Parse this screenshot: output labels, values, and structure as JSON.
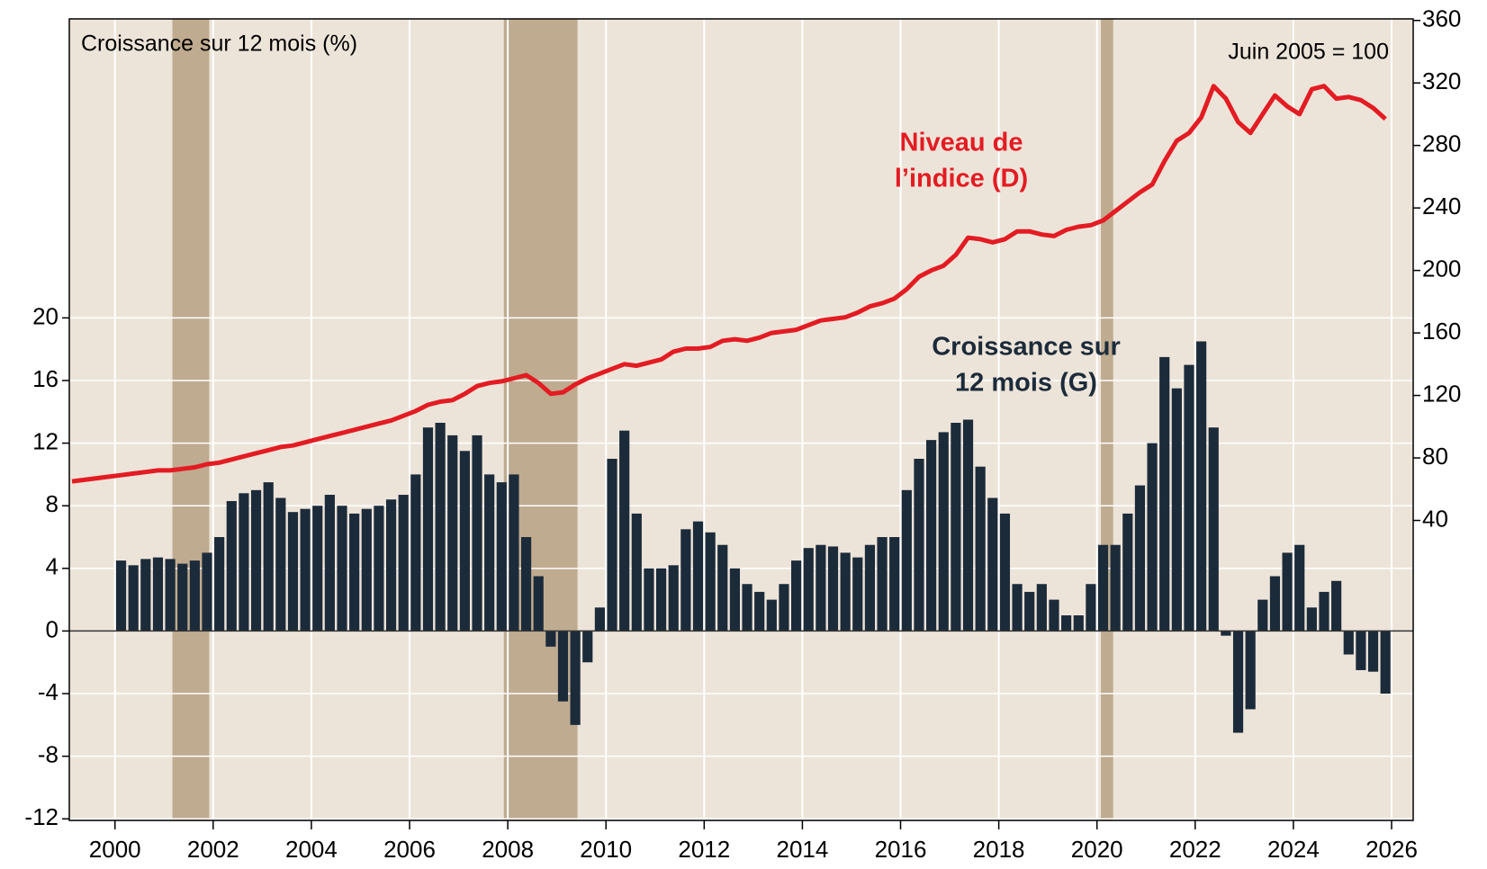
{
  "chart_data": {
    "type": "bar-line",
    "y_axis_label": "Croissance sur 12 mois (%)",
    "y2_axis_label": "Juin 2005 = 100",
    "annotations": [
      {
        "lines": [
          "Niveau de",
          "l’indice (D)"
        ],
        "color": "#e31c23"
      },
      {
        "lines": [
          "Croissance sur",
          "12 mois (G)"
        ],
        "color": "#1c2b3a"
      }
    ],
    "shaded": [
      [
        2001.17,
        2001.92
      ],
      [
        2007.92,
        2009.42
      ],
      [
        2020.08,
        2020.33
      ]
    ],
    "shade_color": "#bfab8f",
    "background": "#ede4d9",
    "xlim": [
      1999.07,
      2026.44
    ],
    "xticks": [
      2000,
      2002,
      2004,
      2006,
      2008,
      2010,
      2012,
      2014,
      2016,
      2018,
      2020,
      2022,
      2024,
      2026
    ],
    "ylim": [
      -12.1,
      39.1
    ],
    "yticks": [
      -12,
      -8,
      -4,
      0,
      4,
      8,
      12,
      16,
      20
    ],
    "y2lim": [
      -152,
      361
    ],
    "y2ticks": [
      40,
      80,
      120,
      160,
      200,
      240,
      280,
      320,
      360
    ],
    "grid": true,
    "series": [
      {
        "type": "bar",
        "color": "#1c2b3a",
        "x": [
          2000.125,
          2000.375,
          2000.625,
          2000.875,
          2001.125,
          2001.375,
          2001.625,
          2001.875,
          2002.125,
          2002.375,
          2002.625,
          2002.875,
          2003.125,
          2003.375,
          2003.625,
          2003.875,
          2004.125,
          2004.375,
          2004.625,
          2004.875,
          2005.125,
          2005.375,
          2005.625,
          2005.875,
          2006.125,
          2006.375,
          2006.625,
          2006.875,
          2007.125,
          2007.375,
          2007.625,
          2007.875,
          2008.125,
          2008.375,
          2008.625,
          2008.875,
          2009.125,
          2009.375,
          2009.625,
          2009.875,
          2010.125,
          2010.375,
          2010.625,
          2010.875,
          2011.125,
          2011.375,
          2011.625,
          2011.875,
          2012.125,
          2012.375,
          2012.625,
          2012.875,
          2013.125,
          2013.375,
          2013.625,
          2013.875,
          2014.125,
          2014.375,
          2014.625,
          2014.875,
          2015.125,
          2015.375,
          2015.625,
          2015.875,
          2016.125,
          2016.375,
          2016.625,
          2016.875,
          2017.125,
          2017.375,
          2017.625,
          2017.875,
          2018.125,
          2018.375,
          2018.625,
          2018.875,
          2019.125,
          2019.375,
          2019.625,
          2019.875,
          2020.125,
          2020.375,
          2020.625,
          2020.875,
          2021.125,
          2021.375,
          2021.625,
          2021.875,
          2022.125,
          2022.375,
          2022.625,
          2022.875,
          2023.125,
          2023.375,
          2023.625,
          2023.875,
          2024.125,
          2024.375,
          2024.625,
          2024.875,
          2025.125,
          2025.375,
          2025.625,
          2025.875
        ],
        "values": [
          4.5,
          4.2,
          4.6,
          4.7,
          4.6,
          4.3,
          4.5,
          5.0,
          6.0,
          8.3,
          8.8,
          9.0,
          9.5,
          8.5,
          7.6,
          7.8,
          8.0,
          8.7,
          8.0,
          7.5,
          7.8,
          8.0,
          8.4,
          8.7,
          10.0,
          13.0,
          13.3,
          12.5,
          11.5,
          12.5,
          10.0,
          9.5,
          10.0,
          6.0,
          3.5,
          -1.0,
          -4.5,
          -6.0,
          -2.0,
          1.5,
          11.0,
          12.8,
          7.5,
          4.0,
          4.0,
          4.2,
          6.5,
          7.0,
          6.3,
          5.5,
          4.0,
          3.0,
          2.5,
          2.0,
          3.0,
          4.5,
          5.3,
          5.5,
          5.4,
          5.0,
          4.7,
          5.5,
          6.0,
          6.0,
          9.0,
          11.0,
          12.2,
          12.7,
          13.3,
          13.5,
          10.5,
          8.5,
          7.5,
          3.0,
          2.5,
          3.0,
          2.0,
          1.0,
          1.0,
          3.0,
          5.5,
          5.5,
          7.5,
          9.3,
          12.0,
          17.5,
          15.5,
          17.0,
          18.5,
          13.0,
          -0.3,
          -6.5,
          -5.0,
          2.0,
          3.5,
          5.0,
          5.5,
          1.5,
          2.5,
          3.2,
          -1.5,
          -2.5,
          -2.6,
          -4.0
        ]
      },
      {
        "type": "line",
        "color": "#e31c23",
        "axis": "y2",
        "x": [
          1999.125,
          1999.375,
          1999.625,
          1999.875,
          2000.125,
          2000.375,
          2000.625,
          2000.875,
          2001.125,
          2001.375,
          2001.625,
          2001.875,
          2002.125,
          2002.375,
          2002.625,
          2002.875,
          2003.125,
          2003.375,
          2003.625,
          2003.875,
          2004.125,
          2004.375,
          2004.625,
          2004.875,
          2005.125,
          2005.375,
          2005.625,
          2005.875,
          2006.125,
          2006.375,
          2006.625,
          2006.875,
          2007.125,
          2007.375,
          2007.625,
          2007.875,
          2008.125,
          2008.375,
          2008.625,
          2008.875,
          2009.125,
          2009.375,
          2009.625,
          2009.875,
          2010.125,
          2010.375,
          2010.625,
          2010.875,
          2011.125,
          2011.375,
          2011.625,
          2011.875,
          2012.125,
          2012.375,
          2012.625,
          2012.875,
          2013.125,
          2013.375,
          2013.625,
          2013.875,
          2014.125,
          2014.375,
          2014.625,
          2014.875,
          2015.125,
          2015.375,
          2015.625,
          2015.875,
          2016.125,
          2016.375,
          2016.625,
          2016.875,
          2017.125,
          2017.375,
          2017.625,
          2017.875,
          2018.125,
          2018.375,
          2018.625,
          2018.875,
          2019.125,
          2019.375,
          2019.625,
          2019.875,
          2020.125,
          2020.375,
          2020.625,
          2020.875,
          2021.125,
          2021.375,
          2021.625,
          2021.875,
          2022.125,
          2022.375,
          2022.625,
          2022.875,
          2023.125,
          2023.375,
          2023.625,
          2023.875,
          2024.125,
          2024.375,
          2024.625,
          2024.875,
          2025.125,
          2025.375,
          2025.625,
          2025.875
        ],
        "values": [
          65,
          66,
          67,
          68,
          69,
          70,
          71,
          72,
          72,
          73,
          74,
          76,
          77,
          79,
          81,
          83,
          85,
          87,
          88,
          90,
          92,
          94,
          96,
          98,
          100,
          102,
          104,
          107,
          110,
          114,
          116,
          117,
          121,
          126,
          128,
          129,
          131,
          133,
          128,
          121,
          122,
          127,
          131,
          134,
          137,
          140,
          139,
          141,
          143,
          148,
          150,
          150,
          151,
          155,
          156,
          155,
          157,
          160,
          161,
          162,
          165,
          168,
          169,
          170,
          173,
          177,
          179,
          182,
          188,
          196,
          200,
          203,
          210,
          221,
          220,
          218,
          220,
          225,
          225,
          223,
          222,
          226,
          228,
          229,
          232,
          238,
          244,
          250,
          255,
          270,
          283,
          288,
          298,
          318,
          310,
          295,
          288,
          300,
          312,
          305,
          300,
          316,
          318,
          310,
          311,
          309,
          304,
          297
        ]
      }
    ]
  }
}
